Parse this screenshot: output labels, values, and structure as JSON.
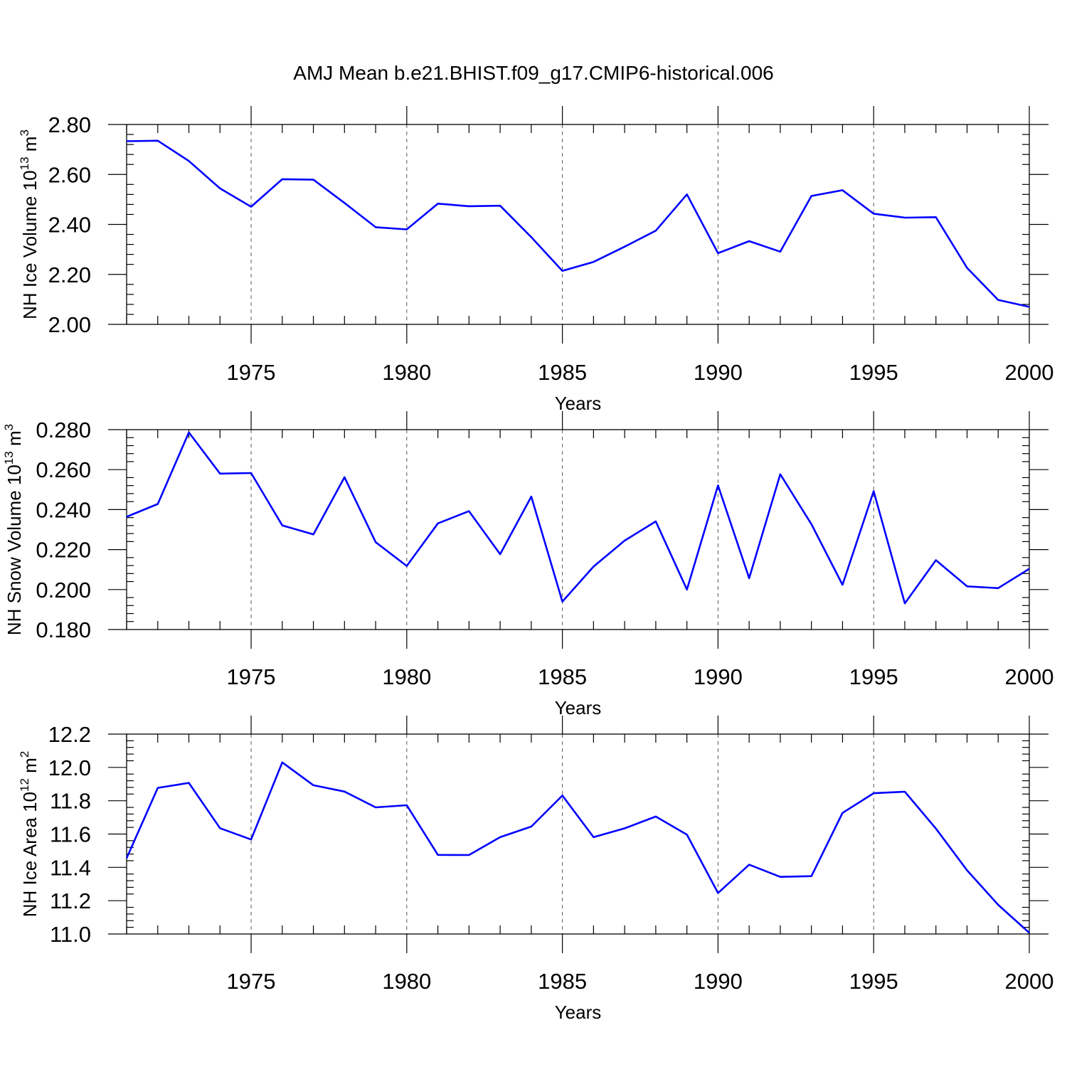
{
  "title": "AMJ Mean b.e21.BHIST.f09_g17.CMIP6-historical.006",
  "colors": {
    "line": "#0000ff",
    "axis": "#000000",
    "grid": "#555555"
  },
  "chart_data": [
    {
      "type": "line",
      "ylabel_main": "NH Ice Volume 10",
      "ylabel_exp": "13",
      "ylabel_unit": " m",
      "ylabel_unit_exp": "3",
      "xlabel": "Years",
      "xlim": [
        1971,
        2000
      ],
      "ylim": [
        2.0,
        2.8
      ],
      "yticks": [
        2.0,
        2.2,
        2.4,
        2.6,
        2.8
      ],
      "ytick_labels": [
        "2.00",
        "2.20",
        "2.40",
        "2.60",
        "2.80"
      ],
      "xticks": [
        1975,
        1980,
        1985,
        1990,
        1995,
        2000
      ],
      "xtick_labels": [
        "1975",
        "1980",
        "1985",
        "1990",
        "1995",
        "2000"
      ],
      "grid": "dashed vertical at labeled years",
      "x": [
        1971,
        1972,
        1973,
        1974,
        1975,
        1976,
        1977,
        1978,
        1979,
        1980,
        1981,
        1982,
        1983,
        1984,
        1985,
        1986,
        1987,
        1988,
        1989,
        1990,
        1991,
        1992,
        1993,
        1994,
        1995,
        1996,
        1997,
        1998,
        1999,
        2000
      ],
      "values": [
        2.733,
        2.735,
        2.654,
        2.544,
        2.471,
        2.581,
        2.579,
        2.486,
        2.389,
        2.38,
        2.483,
        2.473,
        2.475,
        2.349,
        2.214,
        2.25,
        2.311,
        2.375,
        2.52,
        2.285,
        2.333,
        2.291,
        2.514,
        2.537,
        2.443,
        2.427,
        2.429,
        2.226,
        2.098,
        2.07
      ]
    },
    {
      "type": "line",
      "ylabel_main": "NH Snow Volume 10",
      "ylabel_exp": "13",
      "ylabel_unit": " m",
      "ylabel_unit_exp": "3",
      "xlabel": "Years",
      "xlim": [
        1971,
        2000
      ],
      "ylim": [
        0.18,
        0.28
      ],
      "yticks": [
        0.18,
        0.2,
        0.22,
        0.24,
        0.26,
        0.28
      ],
      "ytick_labels": [
        "0.180",
        "0.200",
        "0.220",
        "0.240",
        "0.260",
        "0.280"
      ],
      "xticks": [
        1975,
        1980,
        1985,
        1990,
        1995,
        2000
      ],
      "xtick_labels": [
        "1975",
        "1980",
        "1985",
        "1990",
        "1995",
        "2000"
      ],
      "grid": "dashed vertical at labeled years",
      "x": [
        1971,
        1972,
        1973,
        1974,
        1975,
        1976,
        1977,
        1978,
        1979,
        1980,
        1981,
        1982,
        1983,
        1984,
        1985,
        1986,
        1987,
        1988,
        1989,
        1990,
        1991,
        1992,
        1993,
        1994,
        1995,
        1996,
        1997,
        1998,
        1999,
        2000
      ],
      "values": [
        0.2364,
        0.2428,
        0.2786,
        0.258,
        0.2583,
        0.2321,
        0.2276,
        0.2562,
        0.2237,
        0.2118,
        0.2331,
        0.2392,
        0.2177,
        0.2465,
        0.194,
        0.2115,
        0.2245,
        0.2341,
        0.2,
        0.2521,
        0.2057,
        0.2577,
        0.2327,
        0.2024,
        0.2492,
        0.1931,
        0.2147,
        0.2016,
        0.2007,
        0.2104
      ]
    },
    {
      "type": "line",
      "ylabel_main": "NH Ice Area 10",
      "ylabel_exp": "12",
      "ylabel_unit": " m",
      "ylabel_unit_exp": "2",
      "xlabel": "Years",
      "xlim": [
        1971,
        2000
      ],
      "ylim": [
        11.0,
        12.2
      ],
      "yticks": [
        11.0,
        11.2,
        11.4,
        11.6,
        11.8,
        12.0,
        12.2
      ],
      "ytick_labels": [
        "11.0",
        "11.2",
        "11.4",
        "11.6",
        "11.8",
        "12.0",
        "12.2"
      ],
      "xticks": [
        1975,
        1980,
        1985,
        1990,
        1995,
        2000
      ],
      "xtick_labels": [
        "1975",
        "1980",
        "1985",
        "1990",
        "1995",
        "2000"
      ],
      "grid": "dashed vertical at labeled years",
      "x": [
        1971,
        1972,
        1973,
        1974,
        1975,
        1976,
        1977,
        1978,
        1979,
        1980,
        1981,
        1982,
        1983,
        1984,
        1985,
        1986,
        1987,
        1988,
        1989,
        1990,
        1991,
        1992,
        1993,
        1994,
        1995,
        1996,
        1997,
        1998,
        1999,
        2000
      ],
      "values": [
        11.455,
        11.877,
        11.907,
        11.635,
        11.567,
        12.03,
        11.893,
        11.855,
        11.76,
        11.773,
        11.475,
        11.474,
        11.581,
        11.645,
        11.831,
        11.581,
        11.634,
        11.705,
        11.596,
        11.246,
        11.416,
        11.343,
        11.347,
        11.727,
        11.845,
        11.854,
        11.633,
        11.382,
        11.175,
        11.007
      ]
    }
  ]
}
